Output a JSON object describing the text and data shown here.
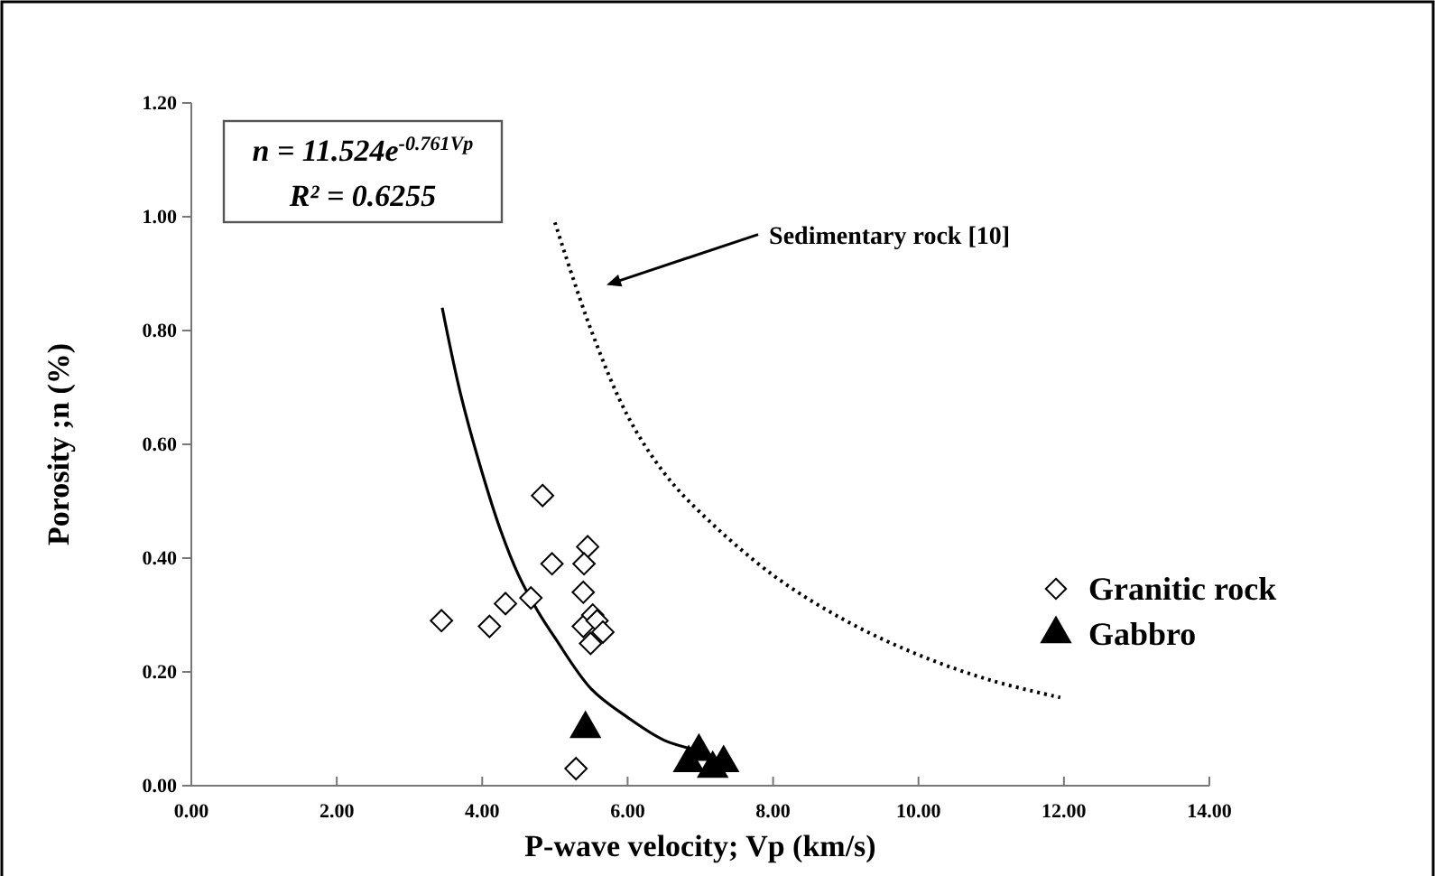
{
  "chart_data": {
    "type": "scatter",
    "xlabel": "P-wave velocity; Vp (km/s)",
    "ylabel": "Porosity ;n (%)",
    "xlim": [
      0,
      14
    ],
    "ylim": [
      0,
      1.2
    ],
    "xticks": [
      {
        "value": 0,
        "label": "0.00"
      },
      {
        "value": 2,
        "label": "2.00"
      },
      {
        "value": 4,
        "label": "4.00"
      },
      {
        "value": 6,
        "label": "6.00"
      },
      {
        "value": 8,
        "label": "8.00"
      },
      {
        "value": 10,
        "label": "10.00"
      },
      {
        "value": 12,
        "label": "12.00"
      },
      {
        "value": 14,
        "label": "14.00"
      }
    ],
    "yticks": [
      {
        "value": 0,
        "label": "0.00"
      },
      {
        "value": 0.2,
        "label": "0.20"
      },
      {
        "value": 0.4,
        "label": "0.40"
      },
      {
        "value": 0.6,
        "label": "0.60"
      },
      {
        "value": 0.8,
        "label": "0.80"
      },
      {
        "value": 1.0,
        "label": "1.00"
      },
      {
        "value": 1.2,
        "label": "1.20"
      }
    ],
    "grid": false,
    "legend": "right",
    "series": [
      {
        "name": "Granitic rock",
        "marker": "diamond",
        "color": "#000000",
        "x": [
          3.44,
          4.1,
          4.32,
          4.67,
          4.83,
          4.96,
          5.45,
          5.4,
          5.39,
          5.39,
          5.52,
          5.58,
          5.66,
          5.49,
          5.29
        ],
        "values": [
          0.29,
          0.28,
          0.32,
          0.33,
          0.51,
          0.39,
          0.42,
          0.39,
          0.34,
          0.28,
          0.3,
          0.29,
          0.27,
          0.25,
          0.03
        ]
      },
      {
        "name": "Gabbro",
        "marker": "triangle",
        "color": "#000000",
        "x": [
          5.42,
          6.84,
          6.98,
          7.17,
          7.32
        ],
        "values": [
          0.1,
          0.04,
          0.06,
          0.03,
          0.04
        ]
      },
      {
        "type": "line",
        "line_style": "solid",
        "color": "#000000",
        "x": [
          3.45,
          3.7,
          4,
          4.25,
          4.5,
          4.75,
          5,
          5.5,
          6,
          6.5,
          7,
          7.2
        ],
        "values": [
          0.84,
          0.69,
          0.55,
          0.45,
          0.37,
          0.31,
          0.26,
          0.17,
          0.12,
          0.08,
          0.06,
          0.05
        ]
      },
      {
        "type": "line",
        "line_style": "dotted",
        "color": "#000000",
        "x": [
          5,
          5.5,
          6,
          6.5,
          7,
          8,
          9,
          10,
          11,
          11.95
        ],
        "values": [
          0.99,
          0.8,
          0.65,
          0.55,
          0.48,
          0.37,
          0.29,
          0.23,
          0.185,
          0.155
        ]
      }
    ],
    "annotations": [
      "n = 11.524e$^{-0.761Vp}$",
      "R² = 0.6255",
      "Sedimentary rock [10]"
    ]
  }
}
